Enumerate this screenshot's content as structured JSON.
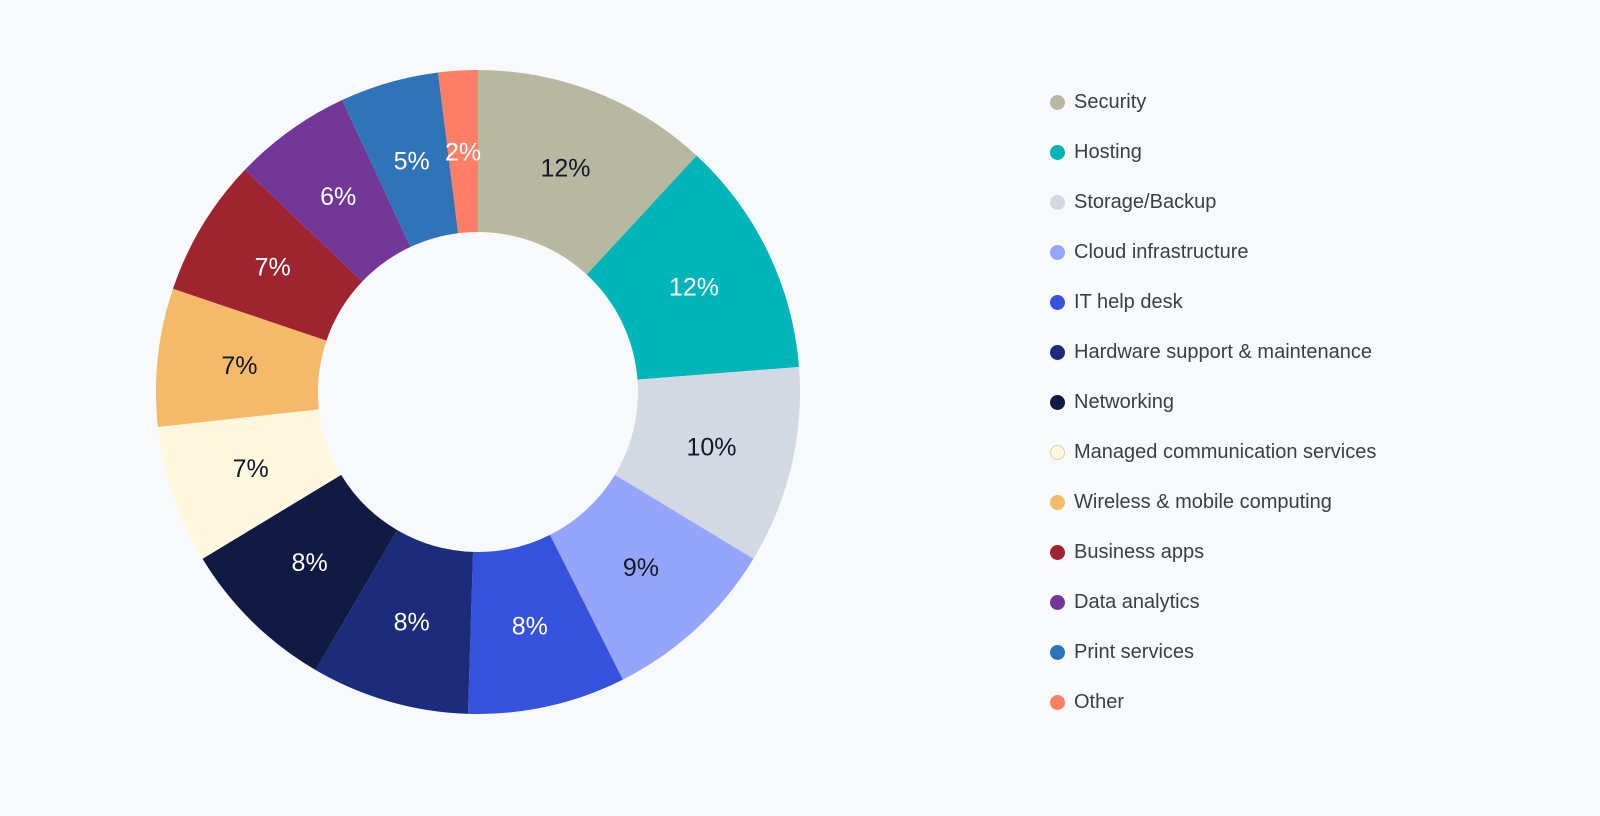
{
  "chart_data": {
    "type": "pie",
    "variant": "donut",
    "legend_position": "right",
    "series": [
      {
        "name": "Security",
        "value": 12,
        "label": "12%",
        "color": "#b8b8a2",
        "label_color": "#111827"
      },
      {
        "name": "Hosting",
        "value": 12,
        "label": "12%",
        "color": "#00b5b8",
        "label_color": "#ffffff"
      },
      {
        "name": "Storage/Backup",
        "value": 10,
        "label": "10%",
        "color": "#d3d9e2",
        "label_color": "#111827"
      },
      {
        "name": "Cloud infrastructure",
        "value": 9,
        "label": "9%",
        "color": "#96a5fc",
        "label_color": "#111827"
      },
      {
        "name": "IT help desk",
        "value": 8,
        "label": "8%",
        "color": "#3652dd",
        "label_color": "#ffffff"
      },
      {
        "name": "Hardware support & maintenance",
        "value": 8,
        "label": "8%",
        "color": "#1c2b7a",
        "label_color": "#ffffff"
      },
      {
        "name": "Networking",
        "value": 8,
        "label": "8%",
        "color": "#101a42",
        "label_color": "#ffffff"
      },
      {
        "name": "Managed communication services",
        "value": 7,
        "label": "7%",
        "color": "#fff8e0",
        "label_color": "#111827"
      },
      {
        "name": "Wireless & mobile computing",
        "value": 7,
        "label": "7%",
        "color": "#f5b96a",
        "label_color": "#111827"
      },
      {
        "name": "Business apps",
        "value": 7,
        "label": "7%",
        "color": "#9e2430",
        "label_color": "#ffffff"
      },
      {
        "name": "Data analytics",
        "value": 6,
        "label": "6%",
        "color": "#733797",
        "label_color": "#ffffff"
      },
      {
        "name": "Print services",
        "value": 5,
        "label": "5%",
        "color": "#2f74b8",
        "label_color": "#ffffff"
      },
      {
        "name": "Other",
        "value": 2,
        "label": "2%",
        "color": "#fd7f65",
        "label_color": "#ffffff"
      }
    ]
  }
}
